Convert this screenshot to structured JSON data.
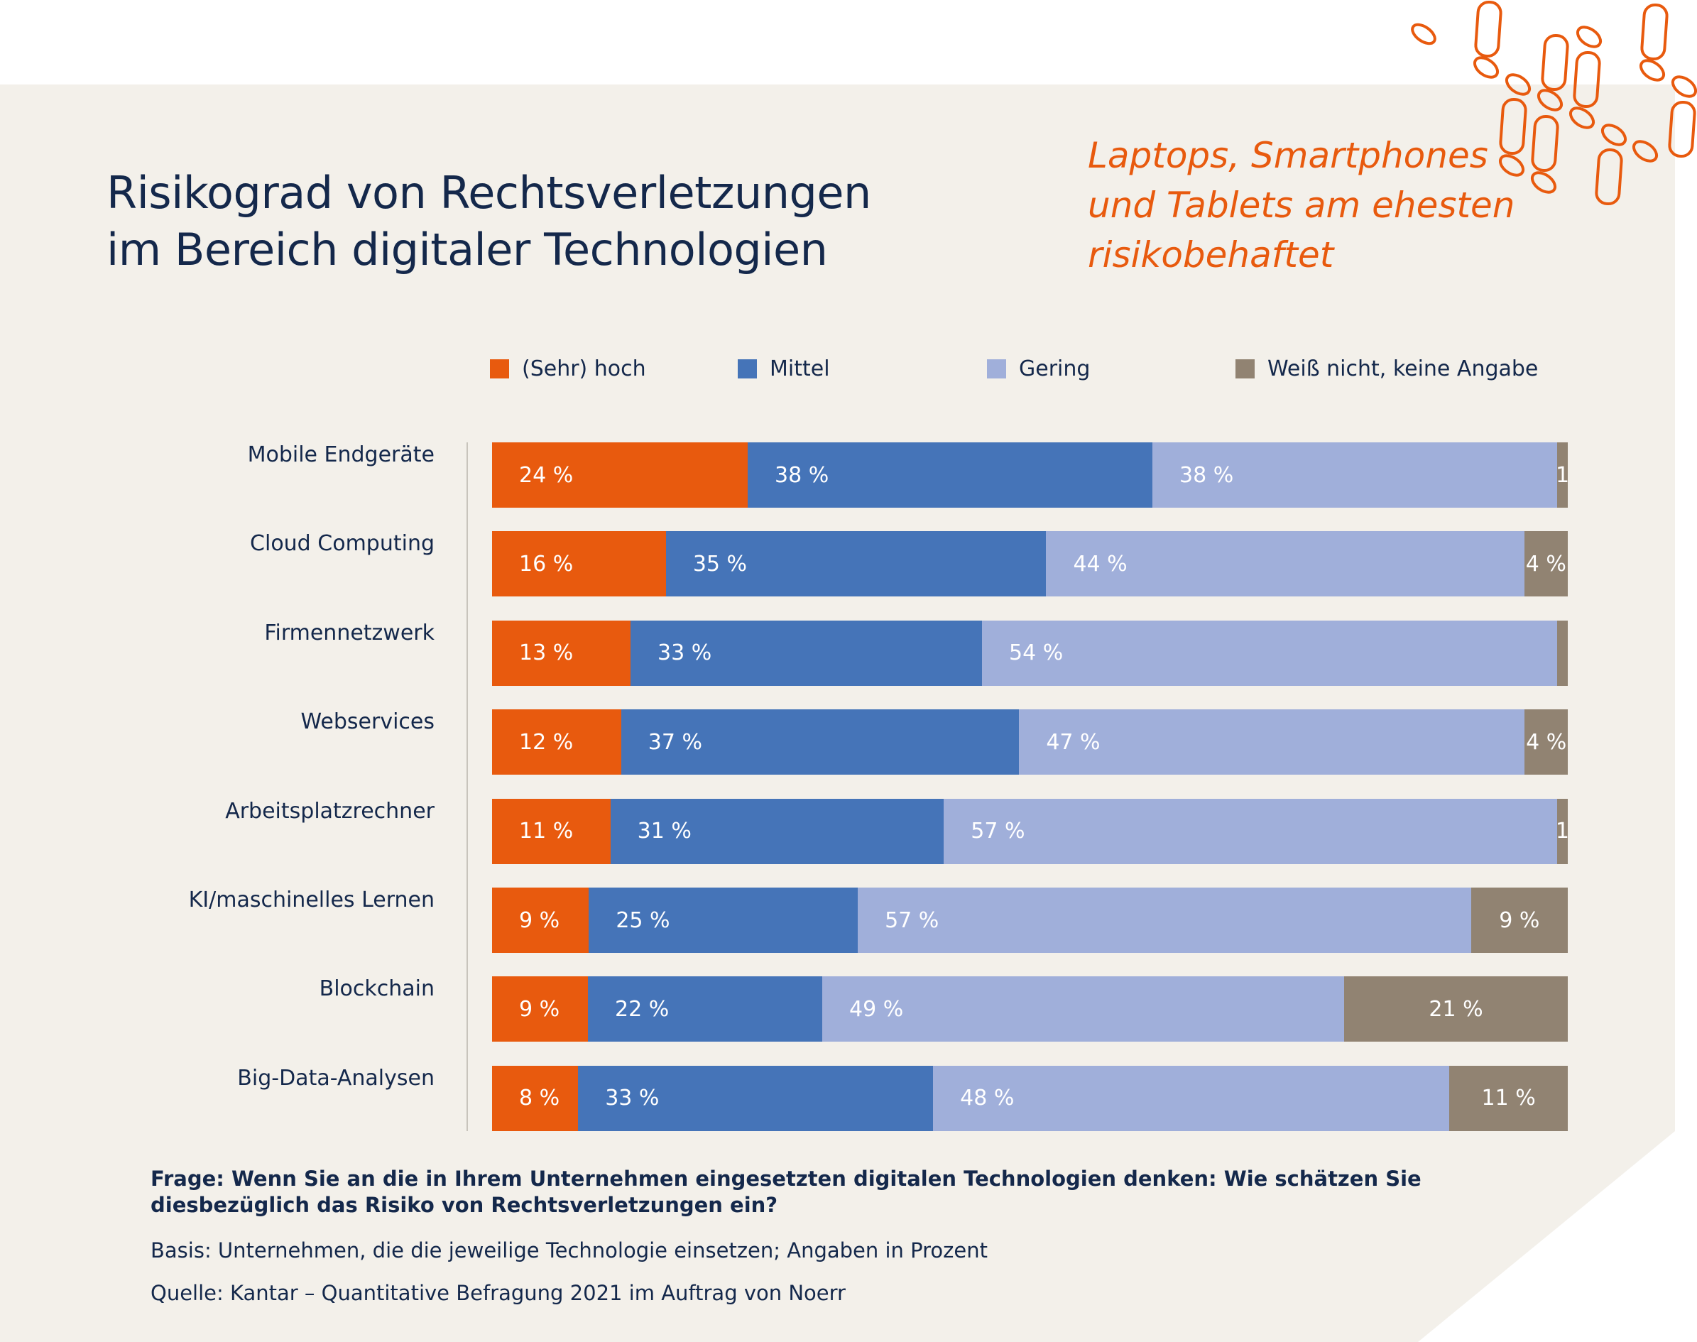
{
  "title_lines": [
    "Risikograd von Rechtsverletzungen",
    "im Bereich digitaler Technologien"
  ],
  "subtitle_lines": [
    "Laptops, Smartphones",
    "und Tablets am ehesten",
    "risikobehaftet"
  ],
  "colors": {
    "background": "#F3F0EA",
    "accent": "#E85A0E",
    "text": "#14284B"
  },
  "chart_data": {
    "type": "bar",
    "orientation": "horizontal",
    "stacked": true,
    "legend_position": "top",
    "categories": [
      "Mobile Endgeräte",
      "Cloud Computing",
      "Firmennetzwerk",
      "Webservices",
      "Arbeitsplatzrechner",
      "KI/maschinelles Lernen",
      "Blockchain",
      "Big-Data-Analysen"
    ],
    "series": [
      {
        "name": "(Sehr) hoch",
        "color": "#E85A0E",
        "values": [
          24,
          16,
          13,
          12,
          11,
          9,
          9,
          8
        ],
        "labels": [
          "24 %",
          "16 %",
          "13 %",
          "12 %",
          "11 %",
          "9 %",
          "9 %",
          "8 %"
        ]
      },
      {
        "name": "Mittel",
        "color": "#4574B8",
        "values": [
          38,
          35,
          33,
          37,
          31,
          25,
          22,
          33
        ],
        "labels": [
          "38 %",
          "35 %",
          "33 %",
          "37 %",
          "31 %",
          "25 %",
          "22 %",
          "33 %"
        ]
      },
      {
        "name": "Gering",
        "color": "#A0AFDA",
        "values": [
          38,
          44,
          54,
          47,
          57,
          57,
          49,
          48
        ],
        "labels": [
          "38 %",
          "44 %",
          "54 %",
          "47 %",
          "57 %",
          "57 %",
          "49 %",
          "48 %"
        ]
      },
      {
        "name": "Weiß nicht, keine Angabe",
        "color": "#918372",
        "values": [
          1,
          4,
          1,
          4,
          1,
          9,
          21,
          11
        ],
        "labels": [
          "1",
          "4 %",
          "",
          "4 %",
          "1",
          "9 %",
          "21 %",
          "11 %"
        ]
      }
    ],
    "unit": "%"
  },
  "footnotes": {
    "question": "Frage: Wenn Sie an die in Ihrem Unternehmen eingesetzten digitalen Technologien denken: Wie schätzen Sie diesbezüglich das Risiko von Rechtsverletzungen ein?",
    "basis": "Basis: Unternehmen, die die jeweilige Technologie einsetzen; Angaben in Prozent",
    "source": "Quelle: Kantar – Quantitative Befragung 2021 im Auftrag von Noerr"
  }
}
